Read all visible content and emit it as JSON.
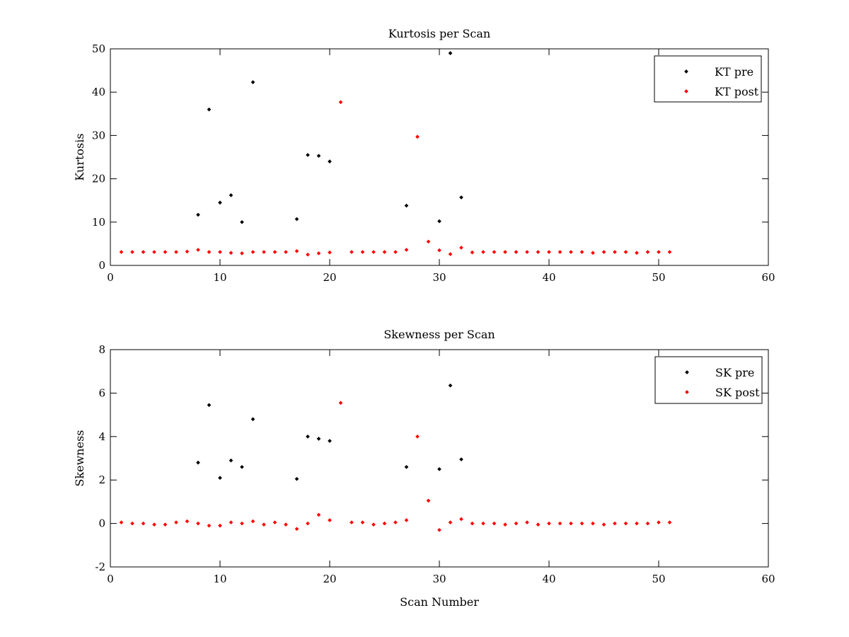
{
  "chart_data": [
    {
      "type": "scatter",
      "title": "Kurtosis per Scan",
      "xlabel": "",
      "ylabel": "Kurtosis",
      "xlim": [
        0,
        60
      ],
      "ylim": [
        0,
        50
      ],
      "xticks": [
        0,
        10,
        20,
        30,
        40,
        50,
        60
      ],
      "yticks": [
        0,
        10,
        20,
        30,
        40,
        50
      ],
      "grid": false,
      "legend_position": "top-right",
      "series": [
        {
          "name": "KT pre",
          "color": "#000000",
          "points": [
            [
              8,
              11.7
            ],
            [
              9,
              36.0
            ],
            [
              10,
              14.5
            ],
            [
              11,
              16.2
            ],
            [
              12,
              10.0
            ],
            [
              13,
              42.3
            ],
            [
              17,
              10.7
            ],
            [
              18,
              25.5
            ],
            [
              19,
              25.3
            ],
            [
              20,
              24.0
            ],
            [
              27,
              13.8
            ],
            [
              30,
              10.2
            ],
            [
              31,
              49.0
            ],
            [
              32,
              15.7
            ]
          ]
        },
        {
          "name": "KT post",
          "color": "#ff0000",
          "points": [
            [
              1,
              3.1
            ],
            [
              2,
              3.1
            ],
            [
              3,
              3.1
            ],
            [
              4,
              3.1
            ],
            [
              5,
              3.1
            ],
            [
              6,
              3.1
            ],
            [
              7,
              3.2
            ],
            [
              8,
              3.6
            ],
            [
              9,
              3.1
            ],
            [
              10,
              3.1
            ],
            [
              11,
              2.9
            ],
            [
              12,
              2.8
            ],
            [
              13,
              3.1
            ],
            [
              14,
              3.1
            ],
            [
              15,
              3.1
            ],
            [
              16,
              3.1
            ],
            [
              17,
              3.3
            ],
            [
              18,
              2.5
            ],
            [
              19,
              2.8
            ],
            [
              20,
              3.0
            ],
            [
              21,
              37.7
            ],
            [
              22,
              3.1
            ],
            [
              23,
              3.1
            ],
            [
              24,
              3.1
            ],
            [
              25,
              3.1
            ],
            [
              26,
              3.1
            ],
            [
              27,
              3.6
            ],
            [
              28,
              29.7
            ],
            [
              29,
              5.5
            ],
            [
              30,
              3.5
            ],
            [
              31,
              2.6
            ],
            [
              32,
              4.1
            ],
            [
              33,
              3.0
            ],
            [
              34,
              3.1
            ],
            [
              35,
              3.1
            ],
            [
              36,
              3.1
            ],
            [
              37,
              3.1
            ],
            [
              38,
              3.1
            ],
            [
              39,
              3.1
            ],
            [
              40,
              3.1
            ],
            [
              41,
              3.1
            ],
            [
              42,
              3.1
            ],
            [
              43,
              3.1
            ],
            [
              44,
              2.9
            ],
            [
              45,
              3.1
            ],
            [
              46,
              3.1
            ],
            [
              47,
              3.1
            ],
            [
              48,
              2.9
            ],
            [
              49,
              3.1
            ],
            [
              50,
              3.1
            ],
            [
              51,
              3.1
            ]
          ]
        }
      ]
    },
    {
      "type": "scatter",
      "title": "Skewness per Scan",
      "xlabel": "Scan Number",
      "ylabel": "Skewness",
      "xlim": [
        0,
        60
      ],
      "ylim": [
        -2,
        8
      ],
      "xticks": [
        0,
        10,
        20,
        30,
        40,
        50,
        60
      ],
      "yticks": [
        -2,
        0,
        2,
        4,
        6,
        8
      ],
      "grid": false,
      "legend_position": "top-right",
      "series": [
        {
          "name": "SK pre",
          "color": "#000000",
          "points": [
            [
              8,
              2.8
            ],
            [
              9,
              5.45
            ],
            [
              10,
              2.1
            ],
            [
              11,
              2.9
            ],
            [
              12,
              2.6
            ],
            [
              13,
              4.8
            ],
            [
              17,
              2.05
            ],
            [
              18,
              4.0
            ],
            [
              19,
              3.9
            ],
            [
              20,
              3.8
            ],
            [
              27,
              2.6
            ],
            [
              30,
              2.5
            ],
            [
              31,
              6.35
            ],
            [
              32,
              2.95
            ]
          ]
        },
        {
          "name": "SK post",
          "color": "#ff0000",
          "points": [
            [
              1,
              0.05
            ],
            [
              2,
              0.0
            ],
            [
              3,
              0.0
            ],
            [
              4,
              -0.05
            ],
            [
              5,
              -0.05
            ],
            [
              6,
              0.05
            ],
            [
              7,
              0.1
            ],
            [
              8,
              0.0
            ],
            [
              9,
              -0.1
            ],
            [
              10,
              -0.1
            ],
            [
              11,
              0.05
            ],
            [
              12,
              0.0
            ],
            [
              13,
              0.1
            ],
            [
              14,
              -0.05
            ],
            [
              15,
              0.05
            ],
            [
              16,
              -0.05
            ],
            [
              17,
              -0.25
            ],
            [
              18,
              0.0
            ],
            [
              19,
              0.4
            ],
            [
              20,
              0.15
            ],
            [
              21,
              5.55
            ],
            [
              22,
              0.05
            ],
            [
              23,
              0.05
            ],
            [
              24,
              -0.05
            ],
            [
              25,
              0.0
            ],
            [
              26,
              0.05
            ],
            [
              27,
              0.15
            ],
            [
              28,
              4.0
            ],
            [
              29,
              1.05
            ],
            [
              30,
              -0.3
            ],
            [
              31,
              0.05
            ],
            [
              32,
              0.2
            ],
            [
              33,
              0.0
            ],
            [
              34,
              0.0
            ],
            [
              35,
              0.0
            ],
            [
              36,
              -0.05
            ],
            [
              37,
              0.0
            ],
            [
              38,
              0.05
            ],
            [
              39,
              -0.05
            ],
            [
              40,
              0.0
            ],
            [
              41,
              0.0
            ],
            [
              42,
              0.0
            ],
            [
              43,
              0.0
            ],
            [
              44,
              0.0
            ],
            [
              45,
              -0.05
            ],
            [
              46,
              0.0
            ],
            [
              47,
              0.0
            ],
            [
              48,
              0.0
            ],
            [
              49,
              0.0
            ],
            [
              50,
              0.05
            ],
            [
              51,
              0.05
            ]
          ]
        }
      ]
    }
  ]
}
